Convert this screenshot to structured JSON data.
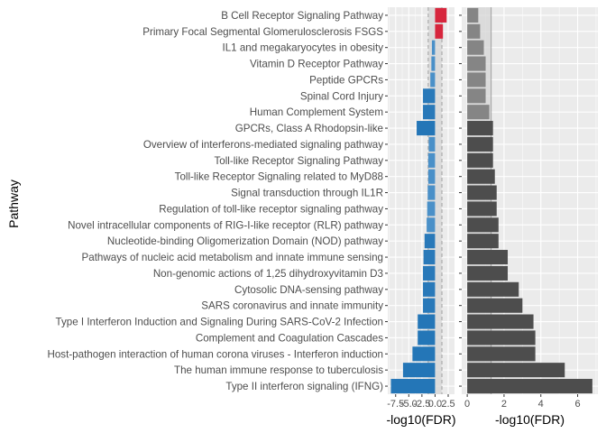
{
  "chart_data": {
    "type": "bar",
    "ylabel": "Pathway",
    "categories": [
      "B Cell Receptor Signaling Pathway",
      "Primary Focal Segmental Glomerulosclerosis FSGS",
      "IL1 and megakaryocytes in obesity",
      "Vitamin D Receptor Pathway",
      "Peptide GPCRs",
      "Spinal Cord Injury",
      "Human Complement System",
      "GPCRs, Class A Rhodopsin-like",
      "Overview of interferons-mediated signaling pathway",
      "Toll-like Receptor Signaling Pathway",
      "Toll-like Receptor Signaling related to MyD88",
      "Signal transduction through IL1R",
      "Regulation of toll-like receptor signaling pathway",
      "Novel intracellular components of RIG-I-like receptor (RLR) pathway",
      "Nucleotide-binding Oligomerization Domain (NOD) pathway",
      "Pathways of nucleic acid metabolism and innate immune sensing",
      "Non-genomic actions of 1,25 dihydroxyvitamin D3",
      "Cytosolic DNA-sensing pathway",
      "SARS coronavirus and innate immunity",
      "Type I Interferon Induction and Signaling During SARS-CoV-2 Infection",
      "Complement and Coagulation Cascades",
      "Host-pathogen interaction of human corona viruses - Interferon induction",
      "The human immune response to tuberculosis",
      "Type II interferon signaling (IFNG)"
    ],
    "panels": [
      {
        "xlabel": "-log10(FDR)",
        "xlim": [
          -9.0,
          3.7
        ],
        "ticks": [
          -7.5,
          -5.0,
          -2.5,
          0.0,
          2.5
        ],
        "tick_labels": [
          "-7.5",
          "-5.0",
          "-2.5",
          "0.0",
          "2.5"
        ],
        "values": [
          2.2,
          1.5,
          -0.6,
          -0.7,
          -0.9,
          -2.3,
          -2.3,
          -3.5,
          -1.2,
          -1.3,
          -1.3,
          -1.4,
          -1.5,
          -1.6,
          -2.0,
          -2.2,
          -2.3,
          -2.3,
          -2.3,
          -3.3,
          -3.3,
          -4.3,
          -6.1,
          -8.4
        ],
        "colors": [
          "#D7263D",
          "#D7263D",
          "#4A90C8",
          "#4A90C8",
          "#4A90C8",
          "#2979B9",
          "#2979B9",
          "#2476B7",
          "#4A90C8",
          "#4A90C8",
          "#4A90C8",
          "#4A90C8",
          "#4A90C8",
          "#4A90C8",
          "#2979B9",
          "#2979B9",
          "#2979B9",
          "#2979B9",
          "#2979B9",
          "#2476B7",
          "#2476B7",
          "#2476B7",
          "#2476B7",
          "#2476B7"
        ],
        "band": [
          -1.3,
          1.3
        ]
      },
      {
        "xlabel": "-log10(FDR)",
        "xlim": [
          -0.3,
          7.1
        ],
        "ticks": [
          0,
          2,
          4,
          6
        ],
        "tick_labels": [
          "0",
          "2",
          "4",
          "6"
        ],
        "values": [
          0.6,
          0.7,
          0.9,
          1.0,
          1.0,
          1.0,
          1.2,
          1.4,
          1.4,
          1.4,
          1.5,
          1.6,
          1.6,
          1.7,
          1.7,
          2.2,
          2.2,
          2.8,
          3.0,
          3.6,
          3.7,
          3.7,
          5.3,
          6.8
        ],
        "colors": [
          "#858585",
          "#858585",
          "#858585",
          "#858585",
          "#858585",
          "#858585",
          "#858585",
          "#4D4D4D",
          "#4D4D4D",
          "#4D4D4D",
          "#4D4D4D",
          "#4D4D4D",
          "#4D4D4D",
          "#4D4D4D",
          "#4D4D4D",
          "#4D4D4D",
          "#4D4D4D",
          "#4D4D4D",
          "#4D4D4D",
          "#4D4D4D",
          "#4D4D4D",
          "#4D4D4D",
          "#4D4D4D",
          "#4D4D4D"
        ],
        "band": [
          0,
          1.3
        ]
      }
    ],
    "panel_background": "#EBEBEB",
    "grid": true,
    "legend": "none"
  }
}
